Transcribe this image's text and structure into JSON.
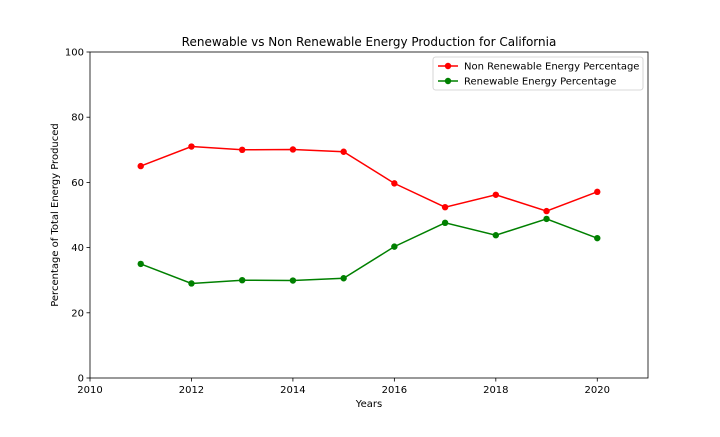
{
  "chart_data": {
    "type": "line",
    "title": "Renewable vs Non Renewable Energy Production for California",
    "xlabel": "Years",
    "ylabel": "Percentage of Total Energy Produced",
    "xlim": [
      2010,
      2021
    ],
    "ylim": [
      0,
      100
    ],
    "xticks": [
      2010,
      2012,
      2014,
      2016,
      2018,
      2020
    ],
    "yticks": [
      0,
      20,
      40,
      60,
      80,
      100
    ],
    "grid": false,
    "legend_position": "top-right",
    "x": [
      2011,
      2012,
      2013,
      2014,
      2015,
      2016,
      2017,
      2018,
      2019,
      2020
    ],
    "series": [
      {
        "name": "Non Renewable Energy Percentage",
        "color": "#ff0000",
        "marker": "circle",
        "values": [
          65.0,
          71.0,
          70.0,
          70.1,
          69.4,
          59.7,
          52.4,
          56.2,
          51.2,
          57.1
        ]
      },
      {
        "name": "Renewable Energy Percentage",
        "color": "#008000",
        "marker": "circle",
        "values": [
          35.0,
          29.0,
          30.0,
          29.9,
          30.6,
          40.3,
          47.6,
          43.8,
          48.8,
          42.9
        ]
      }
    ]
  }
}
